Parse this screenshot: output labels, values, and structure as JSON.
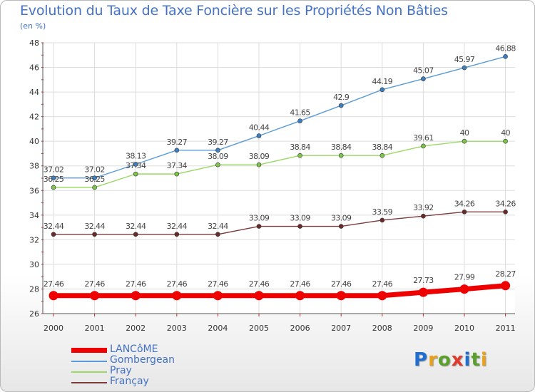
{
  "title": "Evolution du Taux de Taxe Foncière sur les Propriétés Non Bâties",
  "unit": "(en %)",
  "logo": {
    "text": "Proxiti",
    "colors": [
      "#1f6fd1",
      "#e8a11a",
      "#5aa02c",
      "#e03a2b",
      "#1f6fd1",
      "#5aa02c",
      "#e8a11a"
    ]
  },
  "chart_data": {
    "type": "line",
    "x": [
      "2000",
      "2001",
      "2002",
      "2003",
      "2004",
      "2005",
      "2006",
      "2007",
      "2008",
      "2009",
      "2010",
      "2011"
    ],
    "ylim": [
      26,
      48
    ],
    "yticks": [
      "26",
      "28",
      "30",
      "32",
      "34",
      "36",
      "38",
      "40",
      "42",
      "44",
      "46",
      "48"
    ],
    "grid": true,
    "legend_position": "bottom-left",
    "series": [
      {
        "name": "LANCôME",
        "color": "#ee0000",
        "emphasis": true,
        "values": [
          27.46,
          27.46,
          27.46,
          27.46,
          27.46,
          27.46,
          27.46,
          27.46,
          27.46,
          27.73,
          27.99,
          28.27
        ],
        "labels": [
          "27.46",
          "27.46",
          "27.46",
          "27.46",
          "27.46",
          "27.46",
          "27.46",
          "27.46",
          "27.46",
          "27.73",
          "27.99",
          "28.27"
        ]
      },
      {
        "name": "Gombergean",
        "color": "#5b9bd5",
        "marker": "#3f7fc0",
        "emphasis": false,
        "values": [
          37.02,
          37.02,
          38.13,
          39.27,
          39.27,
          40.44,
          41.65,
          42.9,
          44.19,
          45.07,
          45.97,
          46.88
        ],
        "labels": [
          "37.02",
          "37.02",
          "38.13",
          "39.27",
          "39.27",
          "40.44",
          "41.65",
          "42.9",
          "44.19",
          "45.07",
          "45.97",
          "46.88"
        ]
      },
      {
        "name": "Pray",
        "color": "#9bd865",
        "marker": "#7ec34a",
        "emphasis": false,
        "values": [
          36.25,
          36.25,
          37.34,
          37.34,
          38.09,
          38.09,
          38.84,
          38.84,
          38.84,
          39.61,
          40,
          40
        ],
        "labels": [
          "36.25",
          "36.25",
          "37.34",
          "37.34",
          "38.09",
          "38.09",
          "38.84",
          "38.84",
          "38.84",
          "39.61",
          "40",
          "40"
        ]
      },
      {
        "name": "Françay",
        "color": "#7b3b3b",
        "marker": "#6a2a2a",
        "emphasis": false,
        "values": [
          32.44,
          32.44,
          32.44,
          32.44,
          32.44,
          33.09,
          33.09,
          33.09,
          33.59,
          33.92,
          34.26,
          34.26
        ],
        "labels": [
          "32.44",
          "32.44",
          "32.44",
          "32.44",
          "32.44",
          "33.09",
          "33.09",
          "33.09",
          "33.59",
          "33.92",
          "34.26",
          "34.26"
        ]
      }
    ]
  }
}
